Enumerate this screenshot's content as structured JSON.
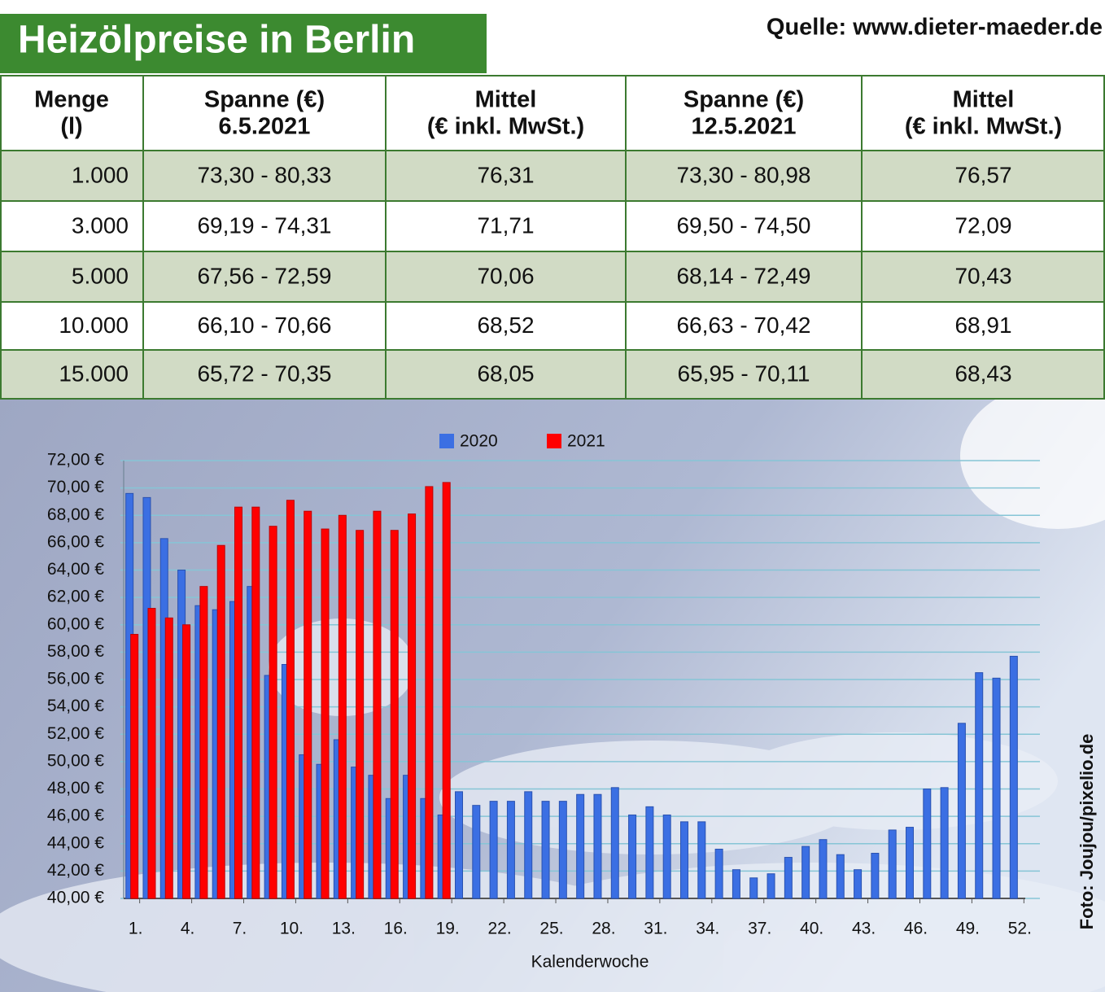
{
  "header": {
    "title": "Heizölpreise in Berlin",
    "source": "Quelle: www.dieter-maeder.de"
  },
  "table": {
    "columns": [
      [
        "Menge",
        "(l)"
      ],
      [
        "Spanne (€)",
        "6.5.2021"
      ],
      [
        "Mittel",
        "(€ inkl. MwSt.)"
      ],
      [
        "Spanne (€)",
        "12.5.2021"
      ],
      [
        "Mittel",
        "(€ inkl. MwSt.)"
      ]
    ],
    "rows": [
      [
        "1.000",
        "73,30 - 80,33",
        "76,31",
        "73,30 - 80,98",
        "76,57"
      ],
      [
        "3.000",
        "69,19 - 74,31",
        "71,71",
        "69,50 - 74,50",
        "72,09"
      ],
      [
        "5.000",
        "67,56 - 72,59",
        "70,06",
        "68,14 - 72,49",
        "70,43"
      ],
      [
        "10.000",
        "66,10 - 70,66",
        "68,52",
        "66,63 - 70,42",
        "68,91"
      ],
      [
        "15.000",
        "65,72 - 70,35",
        "68,05",
        "65,95 - 70,11",
        "68,43"
      ]
    ]
  },
  "chart_data": {
    "type": "bar",
    "x_label": "Kalenderwoche",
    "categories": [
      "1.",
      null,
      null,
      "4.",
      null,
      null,
      "7.",
      null,
      null,
      "10.",
      null,
      null,
      "13.",
      null,
      null,
      "16.",
      null,
      null,
      "19.",
      null,
      null,
      "22.",
      null,
      null,
      "25.",
      null,
      null,
      "28.",
      null,
      null,
      "31.",
      null,
      null,
      "34.",
      null,
      null,
      "37.",
      null,
      null,
      "40.",
      null,
      null,
      "43.",
      null,
      null,
      "46.",
      null,
      null,
      "49.",
      null,
      null,
      "52."
    ],
    "series": [
      {
        "name": "2020",
        "color": "#3b6fe3",
        "values": [
          69.6,
          69.3,
          66.3,
          64.0,
          61.4,
          61.1,
          61.7,
          62.8,
          56.3,
          57.1,
          50.5,
          49.8,
          51.6,
          49.6,
          49.0,
          47.3,
          49.0,
          47.3,
          46.1,
          47.8,
          46.8,
          47.1,
          47.1,
          47.8,
          47.1,
          47.1,
          47.6,
          47.6,
          48.1,
          46.1,
          46.7,
          46.1,
          45.6,
          45.6,
          43.6,
          42.1,
          41.5,
          41.8,
          43.0,
          43.8,
          44.3,
          43.2,
          42.1,
          43.3,
          45.0,
          45.2,
          48.0,
          48.1,
          52.8,
          56.5,
          56.1,
          57.7
        ]
      },
      {
        "name": "2021",
        "color": "#ff0000",
        "values": [
          59.3,
          61.2,
          60.5,
          60.0,
          62.8,
          65.8,
          68.6,
          68.6,
          67.2,
          69.1,
          68.3,
          67.0,
          68.0,
          66.9,
          68.3,
          66.9,
          68.1,
          70.1,
          70.4,
          null,
          null,
          null,
          null,
          null,
          null,
          null,
          null,
          null,
          null,
          null,
          null,
          null,
          null,
          null,
          null,
          null,
          null,
          null,
          null,
          null,
          null,
          null,
          null,
          null,
          null,
          null,
          null,
          null,
          null,
          null,
          null,
          null
        ]
      }
    ],
    "ylim": [
      40,
      72
    ],
    "yticks": [
      {
        "value": 40,
        "label": "40,00 €"
      },
      {
        "value": 42,
        "label": "42,00 €"
      },
      {
        "value": 44,
        "label": "44,00 €"
      },
      {
        "value": 46,
        "label": "46,00 €"
      },
      {
        "value": 48,
        "label": "48,00 €"
      },
      {
        "value": 50,
        "label": "50,00 €"
      },
      {
        "value": 52,
        "label": "52,00 €"
      },
      {
        "value": 54,
        "label": "54,00 €"
      },
      {
        "value": 56,
        "label": "56,00 €"
      },
      {
        "value": 58,
        "label": "58,00 €"
      },
      {
        "value": 60,
        "label": "60,00 €"
      },
      {
        "value": 62,
        "label": "62,00 €"
      },
      {
        "value": 64,
        "label": "64,00 €"
      },
      {
        "value": 66,
        "label": "66,00 €"
      },
      {
        "value": 68,
        "label": "68,00 €"
      },
      {
        "value": 70,
        "label": "70,00 €"
      },
      {
        "value": 72,
        "label": "72,00 €"
      }
    ],
    "grid": true,
    "legend": "top"
  },
  "credit": "Foto: Joujou/pixelio.de"
}
